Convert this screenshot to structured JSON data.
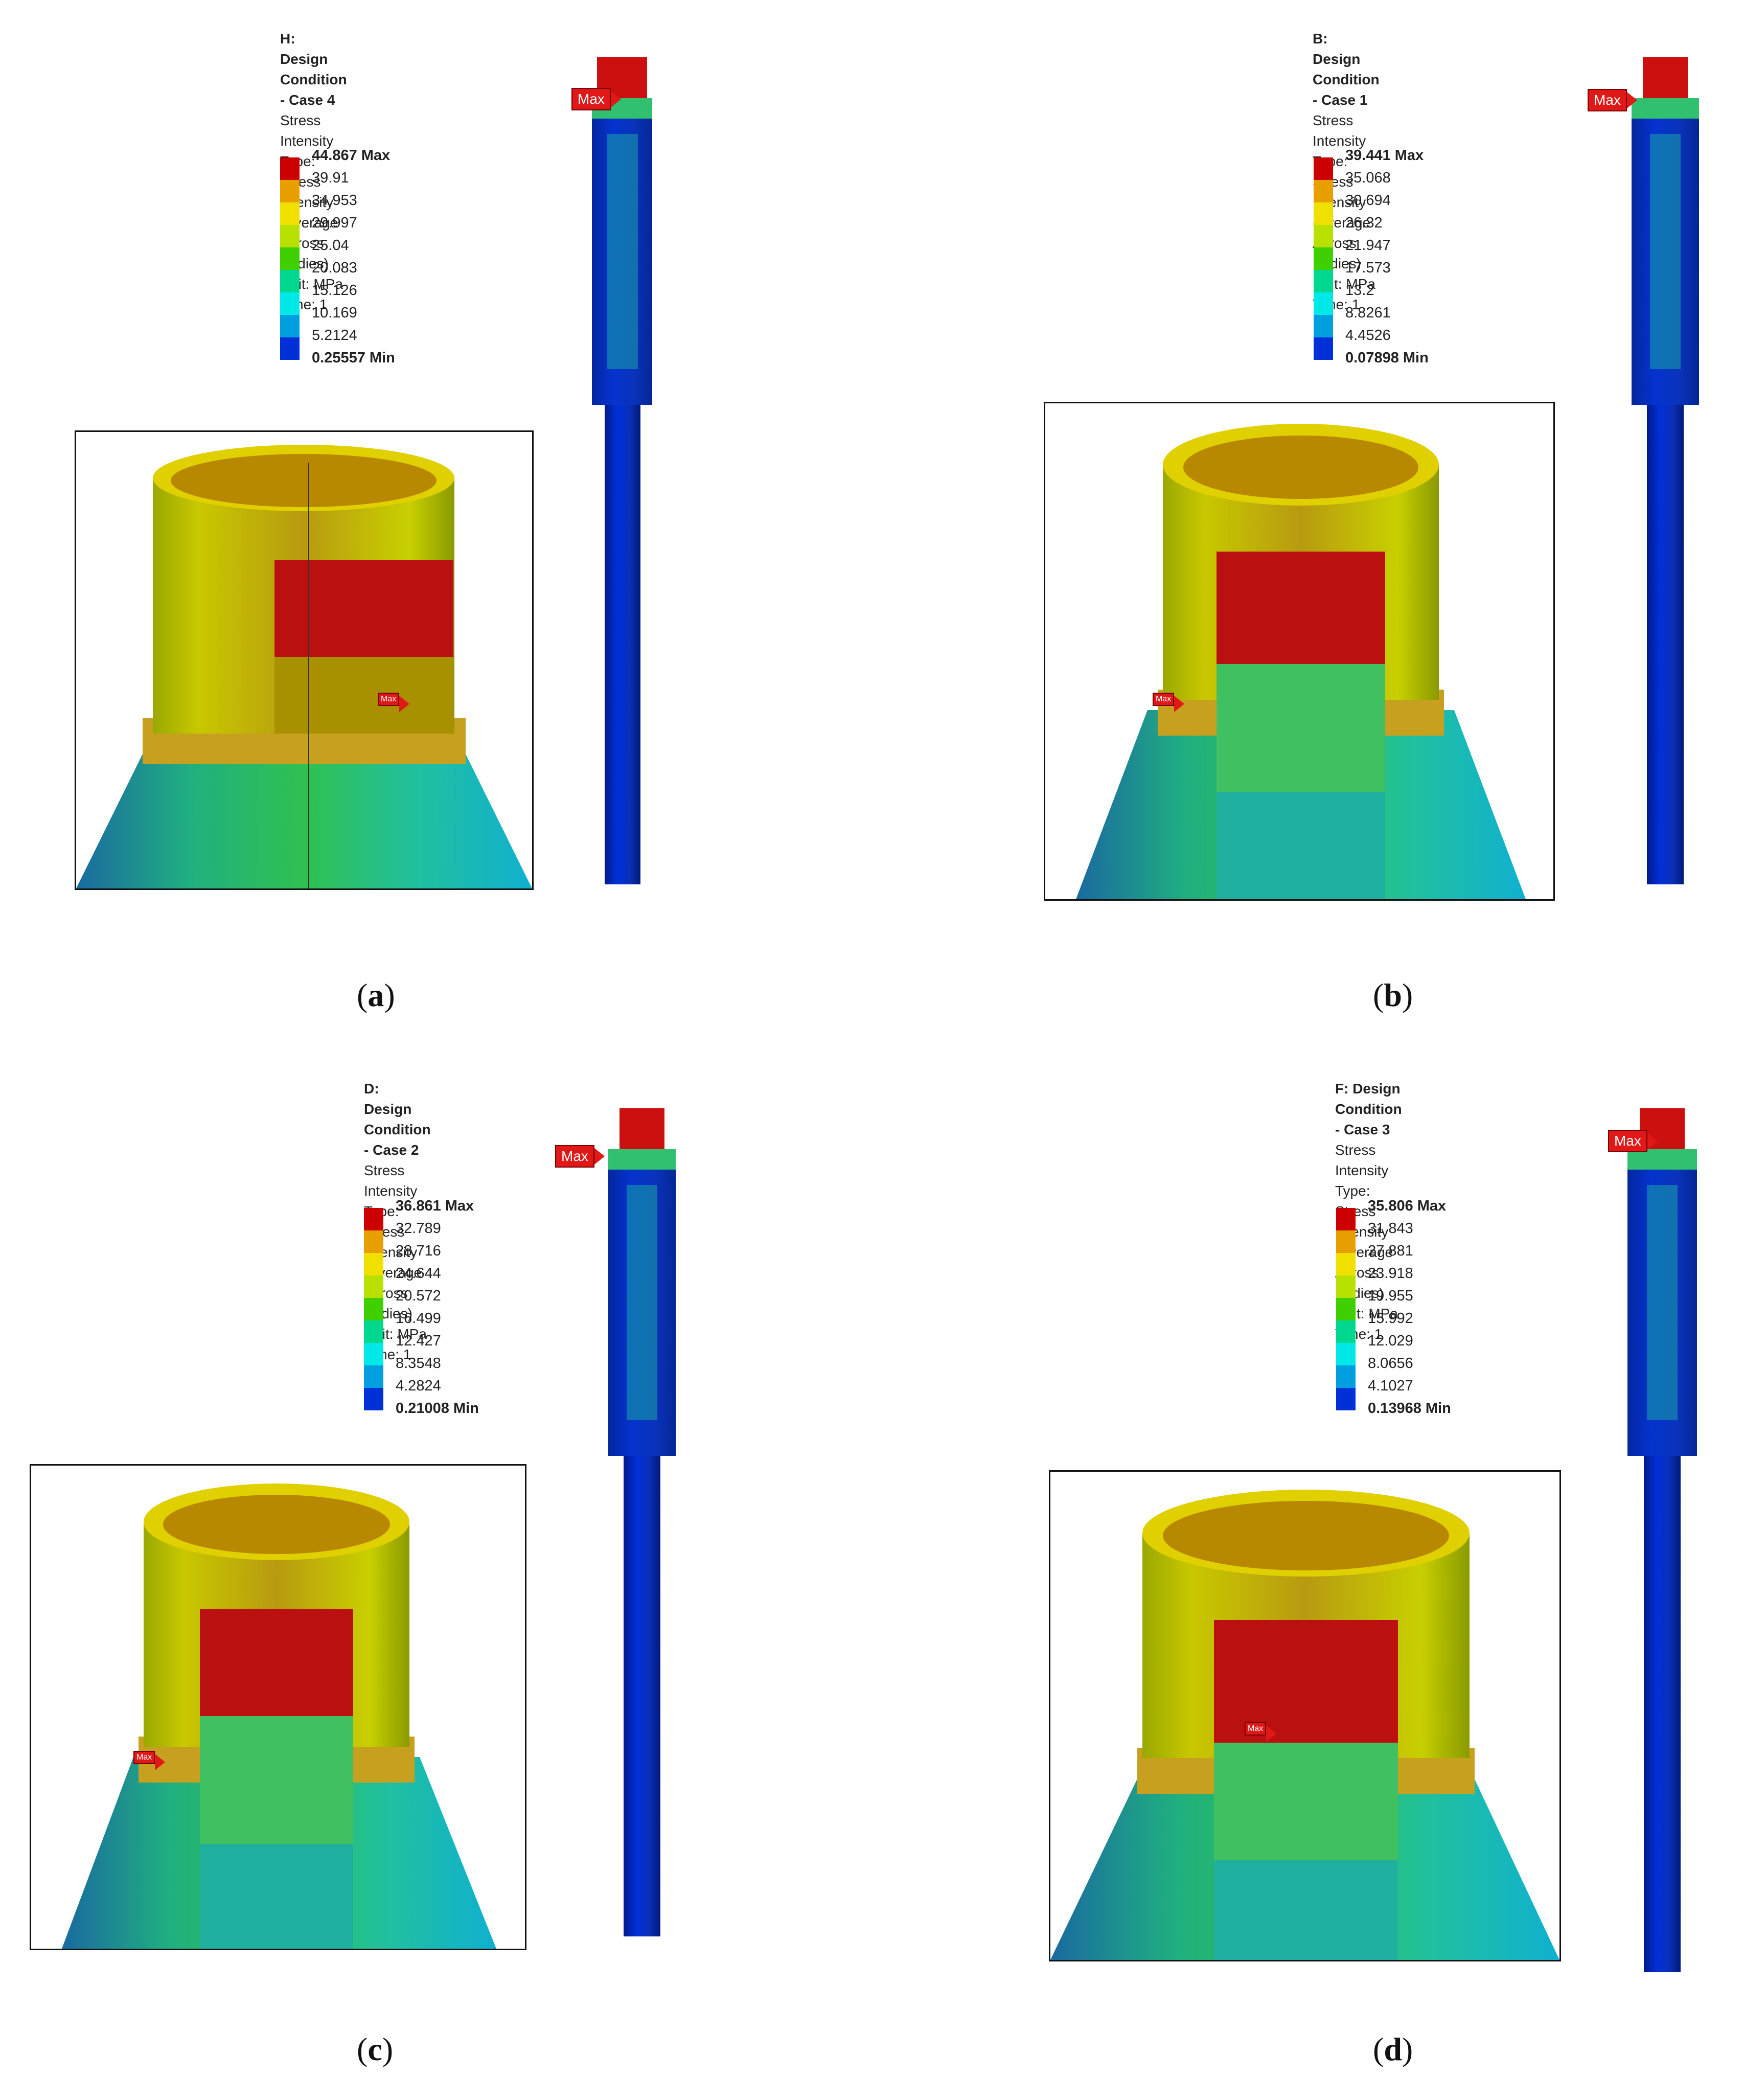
{
  "legend_colors": [
    "#cc0000",
    "#e8a000",
    "#f0e000",
    "#b8e000",
    "#40d000",
    "#00d890",
    "#00e8e8",
    "#00a0e0",
    "#0030d8"
  ],
  "panels": [
    {
      "id": "a",
      "caption_letter": "a",
      "title": "H: Design Condition - Case 4",
      "line1": "Stress Intensity",
      "line2": "Type: Stress Intensity (Average Across Bodies)",
      "line3": "Unit: MPa",
      "line4": "Time: 1",
      "max_tag": "Max",
      "inset_max_tag": "Max",
      "levels": [
        "44.867 Max",
        "39.91",
        "34.953",
        "29.997",
        "25.04",
        "20.083",
        "15.126",
        "10.169",
        "5.2124",
        "0.25557 Min"
      ]
    },
    {
      "id": "b",
      "caption_letter": "b",
      "title": "B: Design Condition - Case 1",
      "line1": "Stress Intensity",
      "line2": "Type: Stress Intensity (Average Across Bodies)",
      "line3": "Unit: MPa",
      "line4": "Time: 1",
      "max_tag": "Max",
      "inset_max_tag": "Max",
      "levels": [
        "39.441 Max",
        "35.068",
        "30.694",
        "26.32",
        "21.947",
        "17.573",
        "13.2",
        "8.8261",
        "4.4526",
        "0.07898 Min"
      ]
    },
    {
      "id": "c",
      "caption_letter": "c",
      "title": "D: Design Condition - Case 2",
      "line1": "Stress Intensity",
      "line2": "Type: Stress Intensity (Average Across Bodies)",
      "line3": "Unit: MPa",
      "line4": "Time: 1",
      "max_tag": "Max",
      "inset_max_tag": "Max",
      "levels": [
        "36.861 Max",
        "32.789",
        "28.716",
        "24.644",
        "20.572",
        "16.499",
        "12.427",
        "8.3548",
        "4.2824",
        "0.21008 Min"
      ]
    },
    {
      "id": "d",
      "caption_letter": "d",
      "title": "F: Design Condition - Case 3",
      "line1": "Stress Intensity",
      "line2": "Type: Stress Intensity (Average Across Bodies)",
      "line3": "Unit: MPa",
      "line4": "Time: 1",
      "max_tag": "Max",
      "inset_max_tag": "Max",
      "levels": [
        "35.806 Max",
        "31.843",
        "27.881",
        "23.918",
        "19.955",
        "15.992",
        "12.029",
        "8.0656",
        "4.1027",
        "0.13968 Min"
      ]
    }
  ]
}
